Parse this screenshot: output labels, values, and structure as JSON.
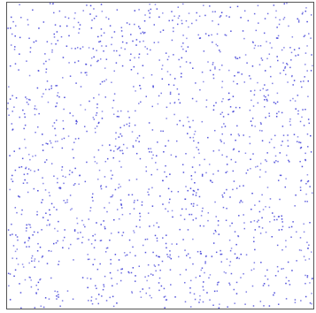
{
  "chart_data": {
    "type": "scatter",
    "title": "",
    "xlabel": "",
    "ylabel": "",
    "xlim": [
      0,
      1
    ],
    "ylim": [
      0,
      1
    ],
    "grid": false,
    "legend": "none",
    "marker_color": "#3b3bd6",
    "frame_color": "#555555",
    "point_count": 1500,
    "distribution": "uniform-random",
    "seed": 20240517
  }
}
